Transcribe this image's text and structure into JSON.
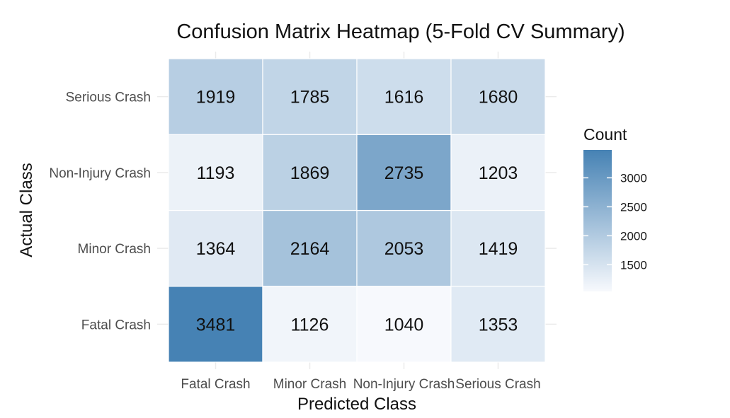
{
  "chart_data": {
    "type": "heatmap",
    "title": "Confusion Matrix Heatmap (5-Fold CV Summary)",
    "xlabel": "Predicted Class",
    "ylabel": "Actual Class",
    "x_categories": [
      "Fatal Crash",
      "Minor Crash",
      "Non-Injury Crash",
      "Serious Crash"
    ],
    "y_categories": [
      "Fatal Crash",
      "Minor Crash",
      "Non-Injury Crash",
      "Serious Crash"
    ],
    "values": [
      [
        3481,
        1126,
        1040,
        1353
      ],
      [
        1364,
        2164,
        2053,
        1419
      ],
      [
        1193,
        1869,
        2735,
        1203
      ],
      [
        1919,
        1785,
        1616,
        1680
      ]
    ],
    "legend": {
      "title": "Count",
      "ticks": [
        1500,
        2000,
        2500,
        3000
      ],
      "low_color": "#f7f9fd",
      "high_color": "#4682b4",
      "position": "right"
    },
    "grid": true
  }
}
